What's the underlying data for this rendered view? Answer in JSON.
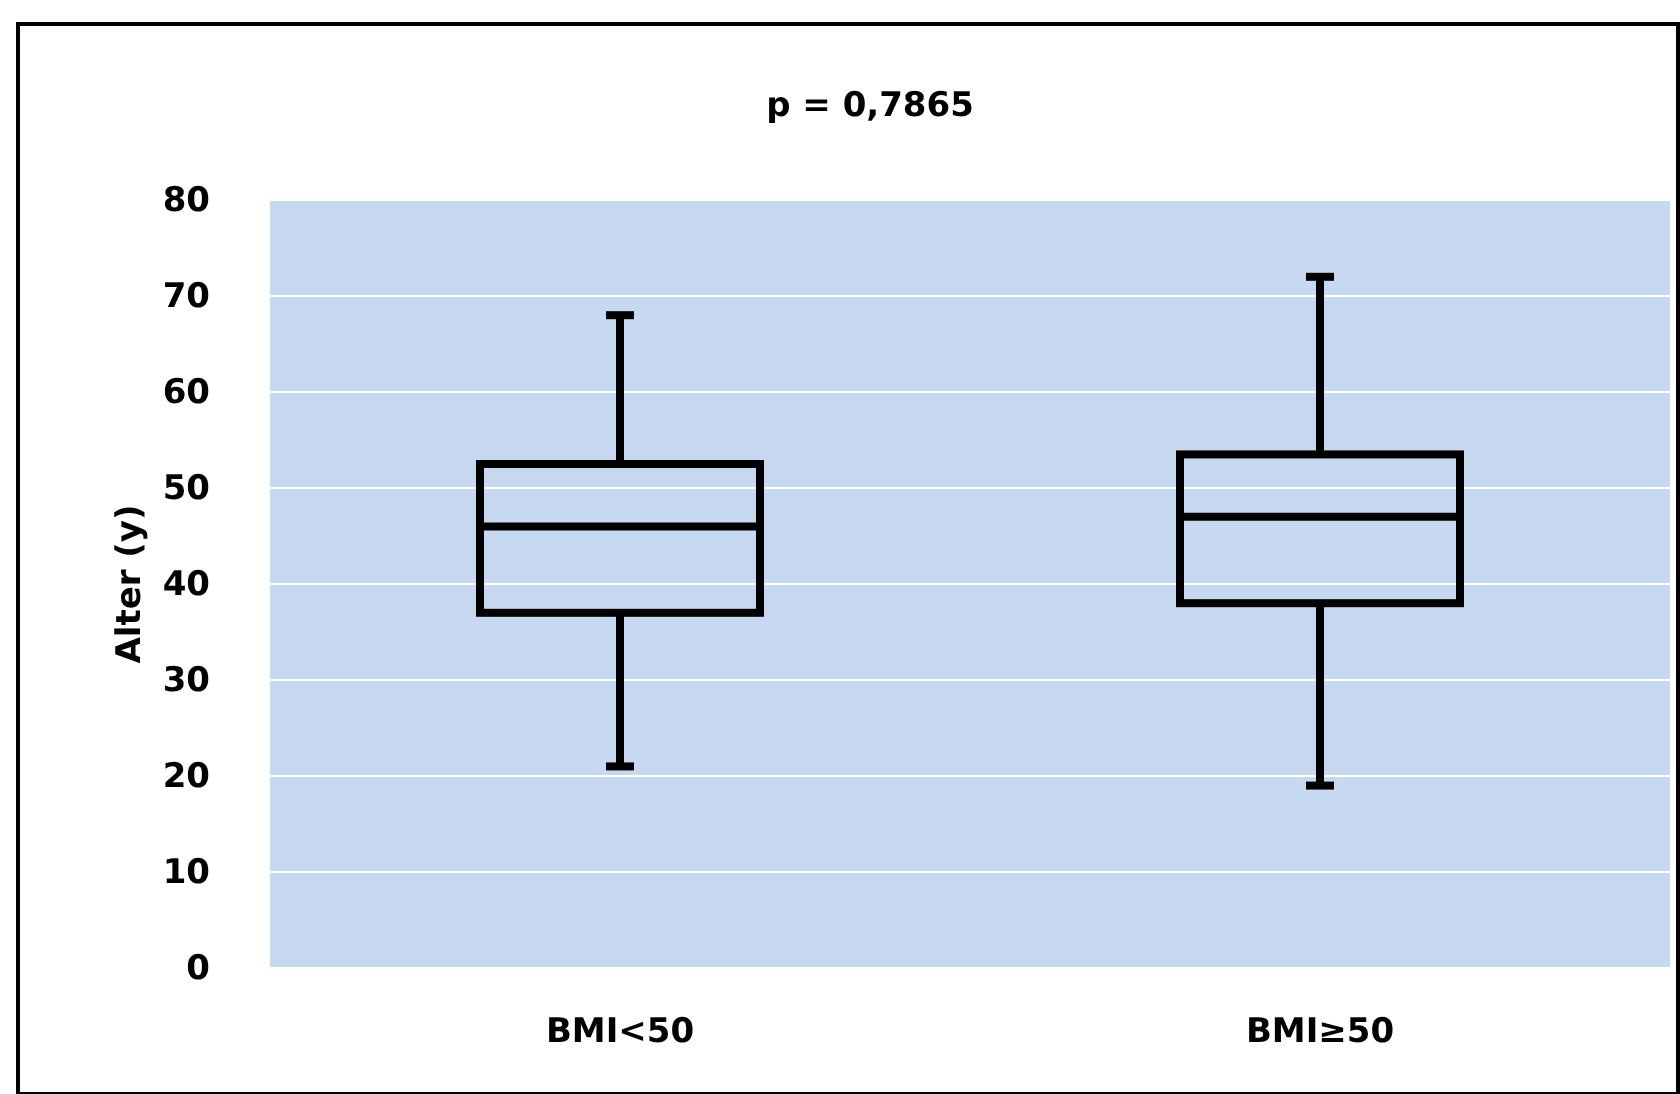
{
  "chart_data": {
    "type": "box",
    "title": "p = 0,7865",
    "ylabel": "Alter (y)",
    "categories": [
      "BMI<50",
      "BMI≥50"
    ],
    "boxes": [
      {
        "low": 21,
        "q1": 37,
        "median": 46,
        "q3": 52.5,
        "high": 68
      },
      {
        "low": 19,
        "q1": 38,
        "median": 47,
        "q3": 53.5,
        "high": 72
      }
    ],
    "color": "#000000",
    "ylim": [
      0,
      80
    ],
    "yticks": [
      0,
      10,
      20,
      30,
      40,
      50,
      60,
      70,
      80
    ],
    "grid": "y"
  }
}
